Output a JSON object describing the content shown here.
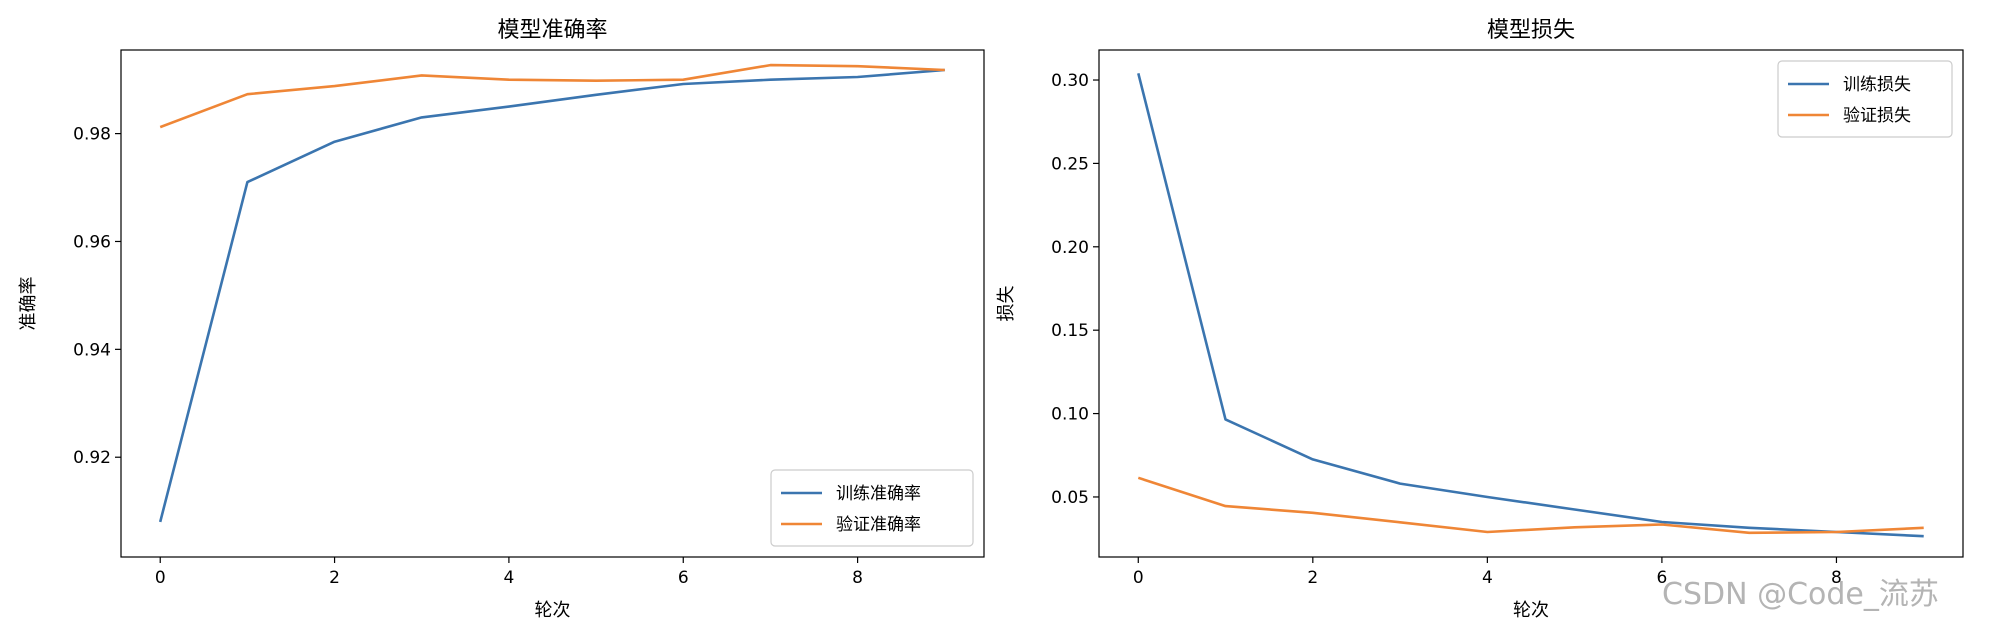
{
  "chart_data": [
    {
      "type": "line",
      "title": "模型准确率",
      "xlabel": "轮次",
      "ylabel": "准确率",
      "x": [
        0,
        1,
        2,
        3,
        4,
        5,
        6,
        7,
        8,
        9
      ],
      "xticks": [
        "0",
        "2",
        "4",
        "6",
        "8"
      ],
      "yticks": [
        "0.92",
        "0.94",
        "0.96",
        "0.98"
      ],
      "xlim": [
        -0.45,
        9.45
      ],
      "ylim": [
        0.9015,
        0.9955
      ],
      "grid": false,
      "legend_position": "lower-right",
      "series": [
        {
          "name": "训练准确率",
          "color": "#3b75af",
          "values": [
            0.908,
            0.971,
            0.9785,
            0.983,
            0.985,
            0.9872,
            0.9892,
            0.99,
            0.9905,
            0.9918
          ]
        },
        {
          "name": "验证准确率",
          "color": "#ef8636",
          "values": [
            0.9812,
            0.9873,
            0.9888,
            0.9908,
            0.99,
            0.9898,
            0.99,
            0.9927,
            0.9925,
            0.9918
          ]
        }
      ]
    },
    {
      "type": "line",
      "title": "模型损失",
      "xlabel": "轮次",
      "ylabel": "损失",
      "x": [
        0,
        1,
        2,
        3,
        4,
        5,
        6,
        7,
        8,
        9
      ],
      "xticks": [
        "0",
        "2",
        "4",
        "6",
        "8"
      ],
      "yticks": [
        "0.05",
        "0.10",
        "0.15",
        "0.20",
        "0.25",
        "0.30"
      ],
      "xlim": [
        -0.45,
        9.45
      ],
      "ylim": [
        0.014,
        0.318
      ],
      "grid": false,
      "legend_position": "upper-right",
      "series": [
        {
          "name": "训练损失",
          "color": "#3b75af",
          "values": [
            0.304,
            0.0965,
            0.0725,
            0.058,
            0.05,
            0.0425,
            0.035,
            0.0315,
            0.029,
            0.0265
          ]
        },
        {
          "name": "验证损失",
          "color": "#ef8636",
          "values": [
            0.0615,
            0.0445,
            0.0405,
            0.0348,
            0.029,
            0.0318,
            0.0335,
            0.0285,
            0.029,
            0.0315
          ]
        }
      ]
    }
  ],
  "watermark": "CSDN @Code_流苏"
}
